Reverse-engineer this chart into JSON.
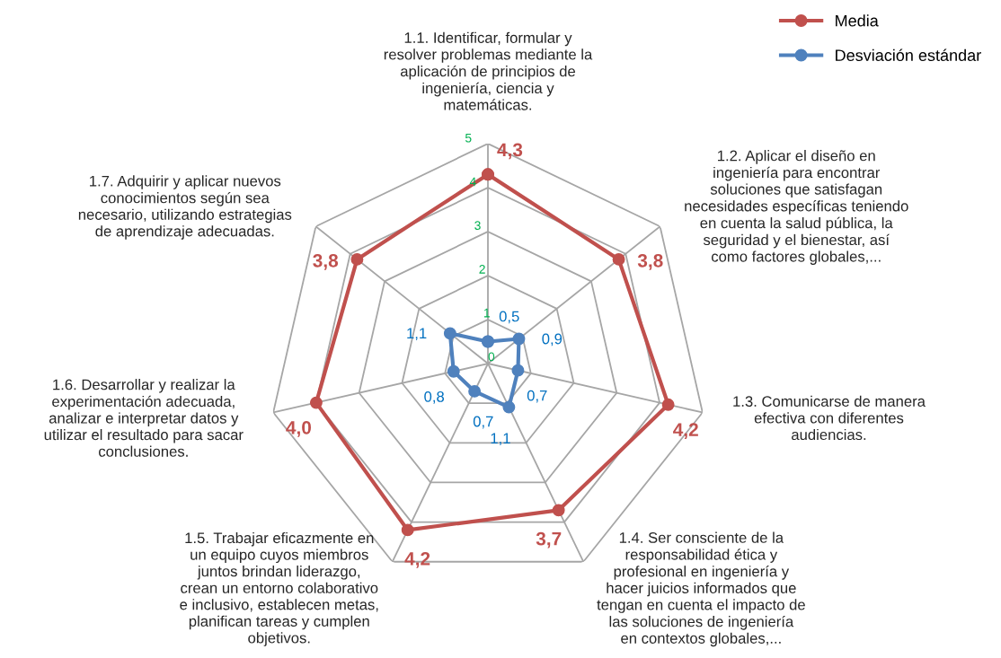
{
  "chart_data": {
    "type": "radar",
    "categories": [
      "1.1. Identificar, formular y resolver problemas mediante la aplicación de principios de ingeniería, ciencia y matemáticas.",
      "1.2. Aplicar el diseño en ingeniería para encontrar soluciones que satisfagan necesidades específicas teniendo en cuenta la salud pública, la seguridad y el bienestar, así como factores globales,...",
      "1.3. Comunicarse de manera efectiva con diferentes audiencias.",
      "1.4. Ser consciente de la responsabilidad ética y profesional en ingeniería y hacer juicios informados que tengan en cuenta el impacto de las soluciones de ingeniería en contextos globales,...",
      "1.5. Trabajar eficazmente en un equipo cuyos miembros juntos brindan liderazgo, crean un entorno colaborativo e inclusivo, establecen metas, planifican tareas y cumplen objetivos.",
      "1.6. Desarrollar y realizar la experimentación adecuada, analizar e interpretar datos y utilizar el resultado para sacar conclusiones.",
      "1.7. Adquirir y aplicar nuevos conocimientos según sea necesario, utilizando estrategias de aprendizaje adecuadas."
    ],
    "series": [
      {
        "name": "Media",
        "color": "#c0504d",
        "values": [
          4.3,
          3.8,
          4.2,
          3.7,
          4.2,
          4.0,
          3.8
        ],
        "value_labels": [
          "4,3",
          "3,8",
          "4,2",
          "3,7",
          "4,2",
          "4,0",
          "3,8"
        ]
      },
      {
        "name": "Desviación estándar",
        "color": "#4f81bd",
        "values": [
          0.5,
          0.9,
          0.7,
          1.1,
          0.7,
          0.8,
          1.1
        ],
        "value_labels": [
          "0,5",
          "0,9",
          "0,7",
          "1,1",
          "0,7",
          "0,8",
          "1,1"
        ]
      }
    ],
    "ylim": [
      0,
      5
    ],
    "yticks": [
      0,
      1,
      2,
      3,
      4,
      5
    ],
    "grid": true,
    "legend": "top right",
    "marker": "circle",
    "line_style": "solid"
  }
}
